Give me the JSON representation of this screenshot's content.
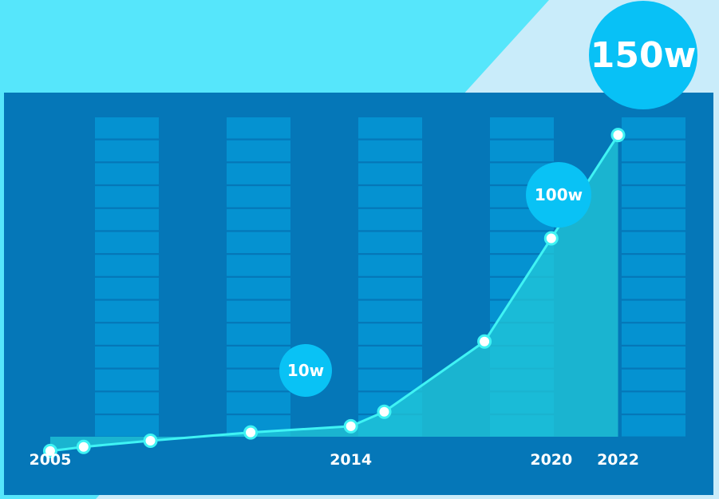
{
  "chart_data": {
    "type": "area",
    "title": "",
    "xlabel": "",
    "ylabel": "",
    "x_tick_labels": [
      "2005",
      "2014",
      "2020",
      "2022"
    ],
    "x": [
      2005,
      2006,
      2008,
      2011,
      2014,
      2015,
      2018,
      2020,
      2022
    ],
    "values": [
      0,
      2,
      5,
      9,
      12,
      19,
      53,
      103,
      153
    ],
    "xlim": [
      2004.5,
      2022.8
    ],
    "ylim": [
      -7,
      160
    ],
    "grid": false,
    "legend": "none",
    "annotations": [
      {
        "label": "10w",
        "x": 2014,
        "value": 12
      },
      {
        "label": "100w",
        "x": 2020,
        "value": 103
      },
      {
        "label": "150w",
        "x": 2022,
        "value": 153
      }
    ],
    "colors": {
      "background": "#56e6fb",
      "panel": "#0577b8",
      "columns": "#0592d1",
      "line": "#3ff3f4",
      "area": "#22c8d8",
      "point_fill": "#ffffff",
      "bubble": "#09c2f5"
    }
  }
}
